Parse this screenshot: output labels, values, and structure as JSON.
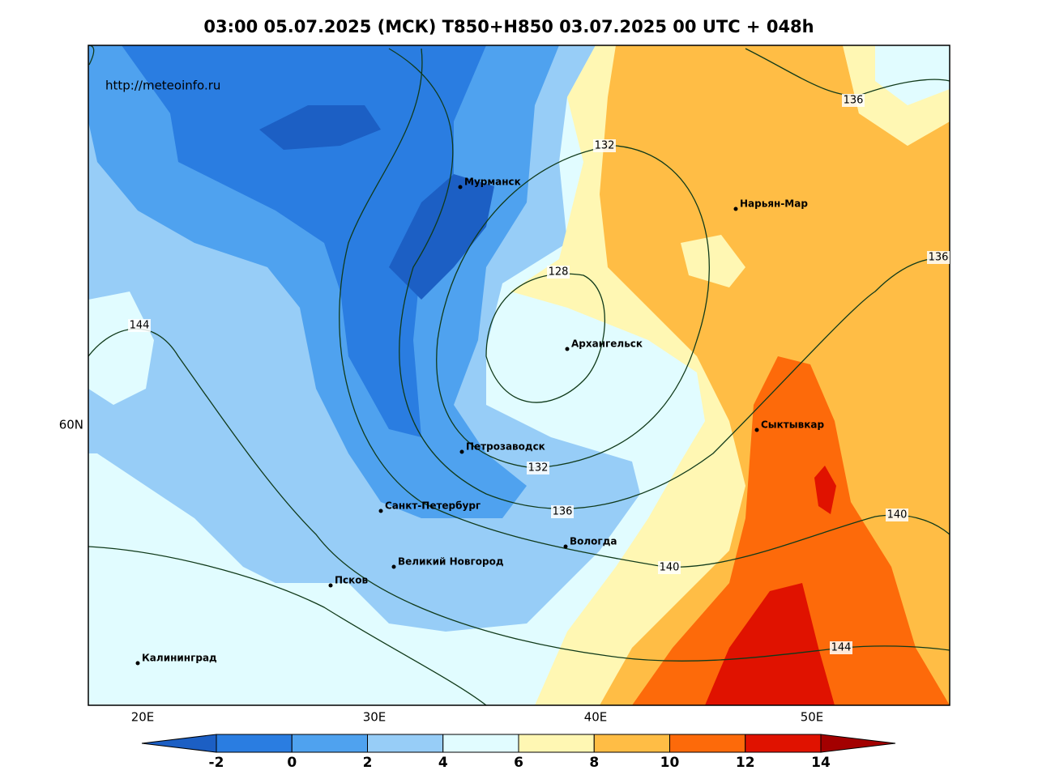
{
  "header": {
    "title": "03:00 05.07.2025 (МСК) T850+H850 03.07.2025 00 UTC + 048h"
  },
  "watermark": "http://meteoinfo.ru",
  "axis": {
    "lon_labels": [
      "20E",
      "30E",
      "40E",
      "50E"
    ],
    "lat_labels": [
      "60N"
    ]
  },
  "cities": [
    "Мурманск",
    "Нарьян-Мар",
    "Архангельск",
    "Сыктывкар",
    "Петрозаводск",
    "Санкт-Петербург",
    "Вологда",
    "Великий Новгород",
    "Псков",
    "Калининград"
  ],
  "isoline_labels": [
    128,
    132,
    132,
    136,
    136,
    136,
    140,
    140,
    144,
    144
  ],
  "colorbar": {
    "ticks": [
      -2,
      0,
      2,
      4,
      6,
      8,
      10,
      12,
      14
    ],
    "colors": [
      "#1c5fc4",
      "#2a7de1",
      "#4fa2ef",
      "#97cdf7",
      "#e1fcff",
      "#fff7b3",
      "#ffbd45",
      "#fd6a0a",
      "#e01200",
      "#a30000"
    ]
  }
}
